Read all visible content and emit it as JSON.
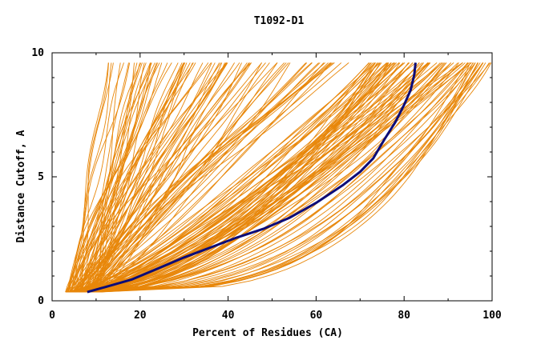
{
  "chart_data": {
    "type": "line",
    "title": "T1092-D1",
    "xlabel": "Percent of Residues (CA)",
    "ylabel": "Distance Cutoff, A",
    "xlim": [
      0,
      100
    ],
    "ylim": [
      0,
      10
    ],
    "x_ticks": [
      "0",
      "20",
      "40",
      "60",
      "80",
      "100"
    ],
    "y_ticks": [
      "0",
      "5",
      "10"
    ],
    "grid": false,
    "legend": "none",
    "colors": {
      "models": "#e8870a",
      "highlight": "#0c0c78",
      "axis": "#000000"
    },
    "highlight_series": {
      "x": [
        8,
        12,
        18,
        24,
        30,
        36,
        42,
        48,
        54,
        60,
        66,
        70,
        73,
        75.5,
        78,
        80,
        81.5,
        82.3,
        82.6
      ],
      "y": [
        0.35,
        0.55,
        0.85,
        1.3,
        1.75,
        2.15,
        2.55,
        2.9,
        3.35,
        3.95,
        4.65,
        5.2,
        5.75,
        6.5,
        7.2,
        7.9,
        8.5,
        9.1,
        9.6
      ]
    },
    "model_count": 180
  }
}
